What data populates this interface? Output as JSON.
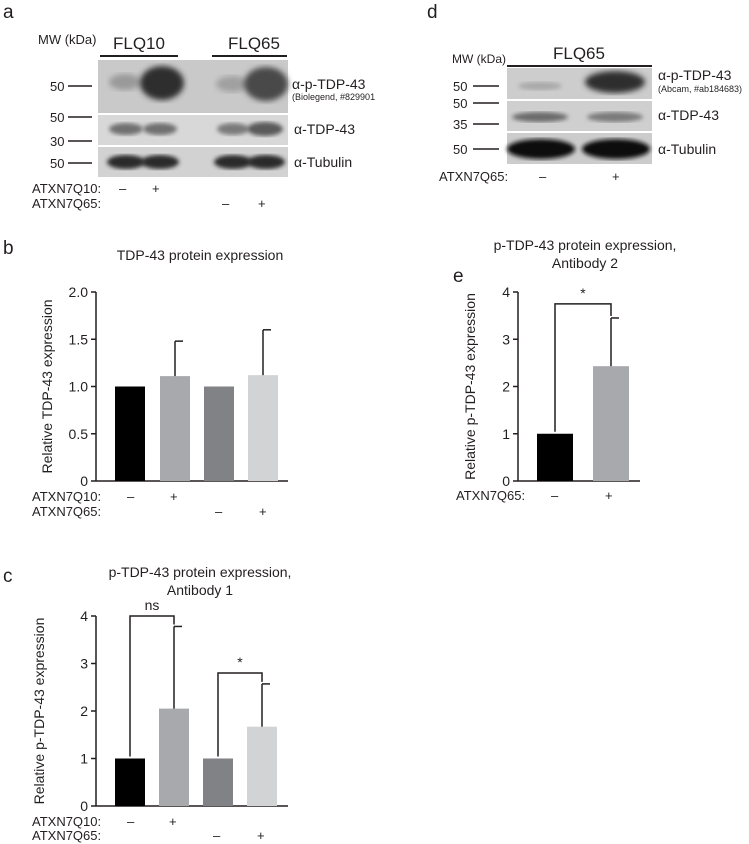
{
  "panel_a": {
    "letter": "a",
    "mw_header": "MW (kDa)",
    "groups": [
      "FLQ10",
      "FLQ65"
    ],
    "mw_markers": [
      "50",
      "50",
      "30",
      "50"
    ],
    "bands": [
      {
        "label": "α-p-TDP-43",
        "sublabel": "(Biolegend, #829901"
      },
      {
        "label": "α-TDP-43",
        "sublabel": ""
      },
      {
        "label": "α-Tubulin",
        "sublabel": ""
      }
    ],
    "rows": [
      {
        "label": "ATXN7Q10:",
        "values": [
          "–",
          "+",
          "",
          ""
        ]
      },
      {
        "label": "ATXN7Q65:",
        "values": [
          "",
          "",
          "–",
          "+"
        ]
      }
    ]
  },
  "panel_d": {
    "letter": "d",
    "mw_header": "MW (kDa)",
    "groups": [
      "FLQ65"
    ],
    "mw_markers": [
      "50",
      "50",
      "35",
      "50"
    ],
    "bands": [
      {
        "label": "α-p-TDP-43",
        "sublabel": "(Abcam, #ab184683)"
      },
      {
        "label": "α-TDP-43",
        "sublabel": ""
      },
      {
        "label": "α-Tubulin",
        "sublabel": ""
      }
    ],
    "rows": [
      {
        "label": "ATXN7Q65:",
        "values": [
          "–",
          "+"
        ]
      }
    ]
  },
  "panel_b": {
    "letter": "b",
    "rows": [
      {
        "label": "ATXN7Q10:",
        "values": [
          "–",
          "+",
          "",
          ""
        ]
      },
      {
        "label": "ATXN7Q65:",
        "values": [
          "",
          "",
          "–",
          "+"
        ]
      }
    ]
  },
  "panel_c": {
    "letter": "c",
    "rows": [
      {
        "label": "ATXN7Q10:",
        "values": [
          "–",
          "+",
          "",
          ""
        ]
      },
      {
        "label": "ATXN7Q65:",
        "values": [
          "",
          "",
          "–",
          "+"
        ]
      }
    ]
  },
  "panel_e": {
    "letter": "e",
    "rows": [
      {
        "label": "ATXN7Q65:",
        "values": [
          "–",
          "+"
        ]
      }
    ]
  },
  "chart_data": [
    {
      "panel": "b",
      "type": "bar",
      "title": "TDP-43 protein expression",
      "ylabel": "Relative TDP-43 expression",
      "ylim": [
        0,
        2.0
      ],
      "yticks": [
        "0",
        "0.5",
        "1.0",
        "1.5",
        "2.0"
      ],
      "values": [
        1.0,
        1.11,
        1.0,
        1.12
      ],
      "errors": [
        0,
        0.37,
        0,
        0.48
      ],
      "colors": [
        "#000000",
        "#a7a9ac",
        "#808285",
        "#d1d3d4"
      ],
      "significance": []
    },
    {
      "panel": "c",
      "type": "bar",
      "title": "p-TDP-43 protein expression,\nAntibody 1",
      "ylabel": "Relative p-TDP-43 expression",
      "ylim": [
        0,
        4
      ],
      "yticks": [
        "0",
        "1",
        "2",
        "3",
        "4"
      ],
      "values": [
        1.0,
        2.05,
        1.0,
        1.67
      ],
      "errors": [
        0,
        1.73,
        0,
        0.9
      ],
      "colors": [
        "#000000",
        "#a7a9ac",
        "#808285",
        "#d1d3d4"
      ],
      "significance": [
        {
          "from": 0,
          "to": 1,
          "label": "ns",
          "y": 4.0
        },
        {
          "from": 2,
          "to": 3,
          "label": "*",
          "y": 2.8
        }
      ]
    },
    {
      "panel": "e",
      "type": "bar",
      "title": "p-TDP-43 protein expression,\nAntibody 2",
      "ylabel": "Relative p-TDP-43 expression",
      "ylim": [
        0,
        4
      ],
      "yticks": [
        "0",
        "1",
        "2",
        "3",
        "4"
      ],
      "values": [
        1.0,
        2.43
      ],
      "errors": [
        0,
        1.02
      ],
      "colors": [
        "#000000",
        "#a7a9ac"
      ],
      "significance": [
        {
          "from": 0,
          "to": 1,
          "label": "*",
          "y": 3.75
        }
      ]
    }
  ]
}
